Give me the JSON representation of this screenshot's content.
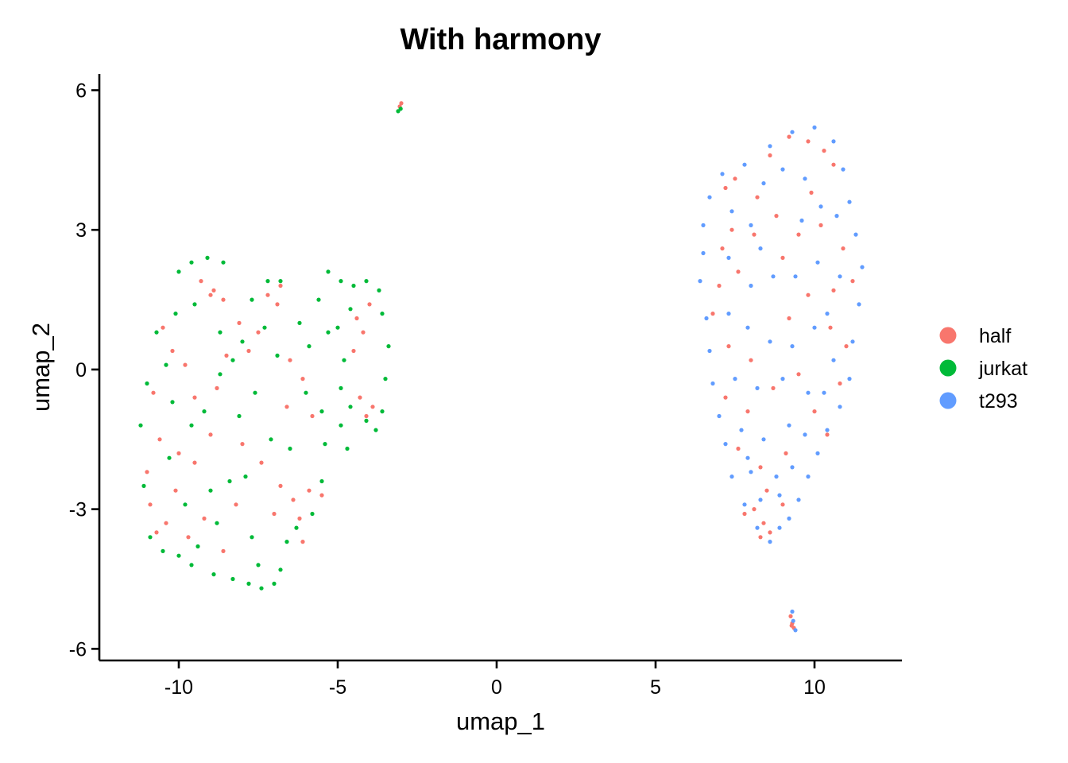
{
  "chart_data": {
    "type": "scatter",
    "title": "With harmony",
    "xlabel": "umap_1",
    "ylabel": "umap_2",
    "xlim": [
      -12.5,
      12.75
    ],
    "ylim": [
      -6.25,
      6.35
    ],
    "x_ticks": [
      -10,
      -5,
      0,
      5,
      10
    ],
    "x_tick_labels": [
      "-10",
      "-5",
      "0",
      "5",
      "10"
    ],
    "y_ticks": [
      -6,
      -3,
      0,
      3,
      6
    ],
    "y_tick_labels": [
      "-6",
      "-3",
      "0",
      "3",
      "6"
    ],
    "grid": false,
    "legend_position": "right",
    "series": [
      {
        "name": "half",
        "color": "#F8766D",
        "points": [
          [
            -10.5,
            0.9
          ],
          [
            -10.2,
            0.4
          ],
          [
            -10.8,
            -0.5
          ],
          [
            -10.6,
            -1.5
          ],
          [
            -10.0,
            -1.8
          ],
          [
            -9.5,
            -2.0
          ],
          [
            -9.0,
            -1.4
          ],
          [
            -9.5,
            -0.6
          ],
          [
            -9.0,
            1.6
          ],
          [
            -9.3,
            1.9
          ],
          [
            -8.9,
            1.7
          ],
          [
            -8.6,
            1.5
          ],
          [
            -7.8,
            0.4
          ],
          [
            -7.2,
            1.6
          ],
          [
            -6.8,
            1.8
          ],
          [
            -6.9,
            1.4
          ],
          [
            -6.5,
            0.2
          ],
          [
            -6.1,
            -0.2
          ],
          [
            -6.6,
            -0.8
          ],
          [
            -5.8,
            -1.0
          ],
          [
            -6.8,
            -2.5
          ],
          [
            -6.4,
            -2.8
          ],
          [
            -6.2,
            -3.2
          ],
          [
            -5.9,
            -2.6
          ],
          [
            -5.5,
            -2.7
          ],
          [
            -6.1,
            -3.7
          ],
          [
            -7.0,
            -3.1
          ],
          [
            -7.4,
            -2.0
          ],
          [
            -8.0,
            -1.6
          ],
          [
            -8.8,
            -0.4
          ],
          [
            -8.5,
            0.3
          ],
          [
            -10.9,
            -2.9
          ],
          [
            -10.4,
            -3.3
          ],
          [
            -10.1,
            -2.6
          ],
          [
            -9.7,
            -3.6
          ],
          [
            -10.7,
            -3.5
          ],
          [
            -11.0,
            -2.2
          ],
          [
            -8.2,
            -2.9
          ],
          [
            -8.6,
            -3.9
          ],
          [
            -9.2,
            -3.2
          ],
          [
            -4.4,
            1.1
          ],
          [
            -4.2,
            0.8
          ],
          [
            -4.5,
            0.4
          ],
          [
            -4.0,
            1.4
          ],
          [
            -4.3,
            -0.6
          ],
          [
            -3.9,
            -0.8
          ],
          [
            -4.1,
            -1.0
          ],
          [
            -7.5,
            0.8
          ],
          [
            -8.1,
            1.0
          ],
          [
            -9.8,
            0.1
          ],
          [
            -3.05,
            5.65
          ],
          [
            -3.0,
            5.72
          ],
          [
            7.2,
            3.9
          ],
          [
            7.5,
            4.1
          ],
          [
            8.2,
            3.7
          ],
          [
            8.6,
            4.6
          ],
          [
            9.2,
            5.0
          ],
          [
            9.8,
            4.9
          ],
          [
            10.3,
            4.7
          ],
          [
            10.6,
            4.4
          ],
          [
            7.1,
            2.6
          ],
          [
            7.6,
            2.1
          ],
          [
            8.1,
            2.9
          ],
          [
            9.0,
            2.4
          ],
          [
            9.5,
            2.9
          ],
          [
            10.2,
            3.1
          ],
          [
            10.9,
            2.6
          ],
          [
            11.2,
            1.9
          ],
          [
            6.8,
            1.2
          ],
          [
            7.3,
            0.5
          ],
          [
            8.0,
            0.2
          ],
          [
            9.2,
            1.1
          ],
          [
            9.8,
            1.6
          ],
          [
            10.5,
            0.9
          ],
          [
            11.0,
            0.5
          ],
          [
            10.8,
            -0.3
          ],
          [
            7.2,
            -0.6
          ],
          [
            7.9,
            -0.9
          ],
          [
            8.7,
            -0.4
          ],
          [
            9.5,
            -0.1
          ],
          [
            10.0,
            -0.9
          ],
          [
            10.4,
            -1.4
          ],
          [
            7.6,
            -1.7
          ],
          [
            8.3,
            -2.1
          ],
          [
            9.1,
            -1.8
          ],
          [
            8.5,
            -2.6
          ],
          [
            8.1,
            -3.0
          ],
          [
            7.8,
            -3.1
          ],
          [
            8.4,
            -3.3
          ],
          [
            8.6,
            -3.5
          ],
          [
            8.3,
            -3.6
          ],
          [
            9.0,
            -2.9
          ],
          [
            7.0,
            1.8
          ],
          [
            8.8,
            3.3
          ],
          [
            9.9,
            3.8
          ],
          [
            10.6,
            1.7
          ],
          [
            7.4,
            3.0
          ],
          [
            9.25,
            -5.3
          ],
          [
            9.3,
            -5.45
          ],
          [
            9.35,
            -5.55
          ],
          [
            9.28,
            -5.5
          ]
        ]
      },
      {
        "name": "jurkat",
        "color": "#00BA38",
        "points": [
          [
            -10.0,
            2.1
          ],
          [
            -9.6,
            2.3
          ],
          [
            -9.1,
            2.4
          ],
          [
            -8.6,
            2.3
          ],
          [
            -10.7,
            0.8
          ],
          [
            -11.0,
            -0.3
          ],
          [
            -11.2,
            -1.2
          ],
          [
            -11.1,
            -2.5
          ],
          [
            -10.9,
            -3.6
          ],
          [
            -10.5,
            -3.9
          ],
          [
            -10.0,
            -4.0
          ],
          [
            -9.6,
            -4.2
          ],
          [
            -8.9,
            -4.4
          ],
          [
            -8.3,
            -4.5
          ],
          [
            -7.8,
            -4.6
          ],
          [
            -7.4,
            -4.7
          ],
          [
            -7.0,
            -4.6
          ],
          [
            -6.8,
            -4.3
          ],
          [
            -6.6,
            -3.7
          ],
          [
            -6.3,
            -3.4
          ],
          [
            -5.8,
            -3.1
          ],
          [
            -5.5,
            -2.4
          ],
          [
            -5.4,
            -1.6
          ],
          [
            -5.5,
            -0.9
          ],
          [
            -6.0,
            -0.5
          ],
          [
            -5.9,
            0.5
          ],
          [
            -6.2,
            1.0
          ],
          [
            -6.8,
            1.9
          ],
          [
            -7.2,
            1.9
          ],
          [
            -7.7,
            1.5
          ],
          [
            -8.0,
            0.6
          ],
          [
            -8.3,
            0.2
          ],
          [
            -8.7,
            -0.1
          ],
          [
            -9.2,
            -0.9
          ],
          [
            -9.6,
            -1.2
          ],
          [
            -10.2,
            -0.7
          ],
          [
            -10.4,
            0.1
          ],
          [
            -10.1,
            1.2
          ],
          [
            -9.5,
            1.4
          ],
          [
            -8.7,
            0.8
          ],
          [
            -7.3,
            0.9
          ],
          [
            -6.9,
            0.3
          ],
          [
            -7.6,
            -0.5
          ],
          [
            -8.1,
            -1.0
          ],
          [
            -7.9,
            -2.3
          ],
          [
            -7.1,
            -1.5
          ],
          [
            -6.5,
            -1.7
          ],
          [
            -8.4,
            -2.4
          ],
          [
            -9.0,
            -2.6
          ],
          [
            -9.8,
            -2.9
          ],
          [
            -10.3,
            -1.9
          ],
          [
            -8.8,
            -3.3
          ],
          [
            -7.7,
            -3.6
          ],
          [
            -7.5,
            -4.2
          ],
          [
            -9.4,
            -3.8
          ],
          [
            -5.3,
            2.1
          ],
          [
            -4.9,
            1.9
          ],
          [
            -4.5,
            1.8
          ],
          [
            -4.1,
            1.9
          ],
          [
            -3.7,
            1.7
          ],
          [
            -3.6,
            1.2
          ],
          [
            -3.4,
            0.5
          ],
          [
            -3.5,
            -0.2
          ],
          [
            -3.6,
            -0.9
          ],
          [
            -3.8,
            -1.3
          ],
          [
            -4.1,
            -1.1
          ],
          [
            -4.6,
            -0.8
          ],
          [
            -4.9,
            -0.4
          ],
          [
            -4.8,
            0.2
          ],
          [
            -5.0,
            0.9
          ],
          [
            -4.6,
            1.3
          ],
          [
            -5.6,
            1.5
          ],
          [
            -5.3,
            0.8
          ],
          [
            -4.7,
            -1.7
          ],
          [
            -4.9,
            -1.2
          ],
          [
            -3.1,
            5.55
          ],
          [
            -3.02,
            5.6
          ]
        ]
      },
      {
        "name": "t293",
        "color": "#619CFF",
        "points": [
          [
            6.5,
            3.1
          ],
          [
            6.7,
            3.7
          ],
          [
            7.1,
            4.2
          ],
          [
            7.8,
            4.4
          ],
          [
            8.6,
            4.8
          ],
          [
            9.3,
            5.1
          ],
          [
            10.0,
            5.2
          ],
          [
            10.6,
            4.9
          ],
          [
            10.9,
            4.3
          ],
          [
            11.1,
            3.6
          ],
          [
            11.3,
            2.9
          ],
          [
            11.5,
            2.2
          ],
          [
            11.4,
            1.4
          ],
          [
            11.2,
            0.6
          ],
          [
            11.1,
            -0.2
          ],
          [
            10.8,
            -0.8
          ],
          [
            10.4,
            -1.3
          ],
          [
            10.1,
            -1.8
          ],
          [
            9.8,
            -2.3
          ],
          [
            9.5,
            -2.8
          ],
          [
            9.2,
            -3.2
          ],
          [
            8.9,
            -3.4
          ],
          [
            8.6,
            -3.7
          ],
          [
            8.2,
            -3.4
          ],
          [
            7.8,
            -2.9
          ],
          [
            7.4,
            -2.3
          ],
          [
            7.2,
            -1.6
          ],
          [
            7.0,
            -1.0
          ],
          [
            6.8,
            -0.3
          ],
          [
            6.7,
            0.4
          ],
          [
            6.6,
            1.1
          ],
          [
            6.4,
            1.9
          ],
          [
            6.5,
            2.5
          ],
          [
            7.4,
            3.4
          ],
          [
            8.0,
            3.1
          ],
          [
            8.4,
            4.0
          ],
          [
            9.0,
            4.3
          ],
          [
            9.7,
            4.1
          ],
          [
            10.2,
            3.5
          ],
          [
            10.7,
            3.3
          ],
          [
            7.3,
            2.4
          ],
          [
            8.0,
            1.8
          ],
          [
            8.7,
            2.0
          ],
          [
            9.4,
            2.0
          ],
          [
            10.1,
            2.3
          ],
          [
            10.8,
            2.0
          ],
          [
            7.3,
            1.2
          ],
          [
            7.9,
            0.9
          ],
          [
            8.6,
            0.6
          ],
          [
            9.3,
            0.5
          ],
          [
            10.0,
            0.9
          ],
          [
            10.6,
            0.2
          ],
          [
            7.5,
            -0.2
          ],
          [
            8.2,
            -0.4
          ],
          [
            9.0,
            -0.2
          ],
          [
            9.8,
            -0.5
          ],
          [
            10.3,
            -0.5
          ],
          [
            7.7,
            -1.3
          ],
          [
            8.4,
            -1.5
          ],
          [
            9.2,
            -1.2
          ],
          [
            9.7,
            -1.4
          ],
          [
            8.0,
            -2.2
          ],
          [
            8.8,
            -2.3
          ],
          [
            9.3,
            -2.1
          ],
          [
            8.3,
            -2.8
          ],
          [
            8.9,
            -2.7
          ],
          [
            7.9,
            -1.9
          ],
          [
            9.6,
            3.2
          ],
          [
            8.3,
            2.6
          ],
          [
            10.4,
            1.2
          ],
          [
            9.3,
            -5.2
          ],
          [
            9.4,
            -5.6
          ],
          [
            9.33,
            -5.4
          ]
        ]
      }
    ]
  }
}
